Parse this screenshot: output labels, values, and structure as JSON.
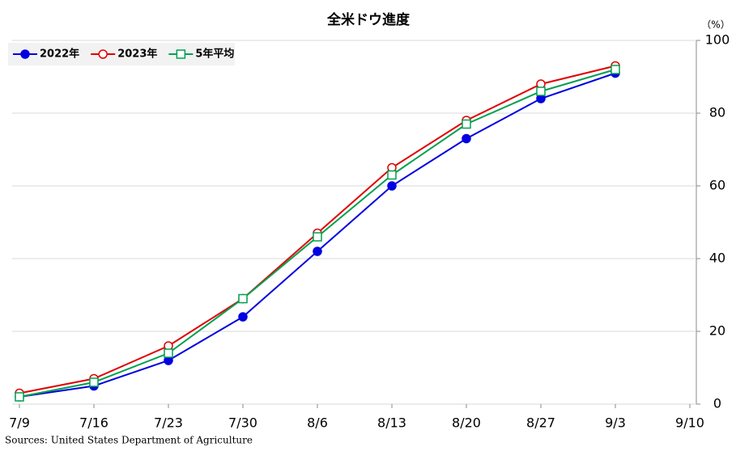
{
  "chart_data": {
    "type": "line",
    "title": "全米ドウ進度",
    "y_unit": "（%）",
    "categories": [
      "7/9",
      "7/16",
      "7/23",
      "7/30",
      "8/6",
      "8/13",
      "8/20",
      "8/27",
      "9/3",
      "9/10"
    ],
    "series": [
      {
        "name": "2022年",
        "color": "#0000e0",
        "marker": "filled-circle",
        "values": [
          2,
          5,
          12,
          24,
          42,
          60,
          73,
          84,
          91,
          null
        ]
      },
      {
        "name": "2023年",
        "color": "#e00000",
        "marker": "open-circle",
        "values": [
          3,
          7,
          16,
          29,
          47,
          65,
          78,
          88,
          93,
          null
        ]
      },
      {
        "name": "5年平均",
        "color": "#00a050",
        "marker": "open-square",
        "values": [
          2,
          6,
          14,
          29,
          46,
          63,
          77,
          86,
          92,
          null
        ]
      }
    ],
    "ylim": [
      0,
      100
    ],
    "yticks": [
      0,
      20,
      40,
      60,
      80,
      100
    ],
    "grid": true,
    "legend": "upper left",
    "source": "Sources: United States Department of Agriculture"
  }
}
